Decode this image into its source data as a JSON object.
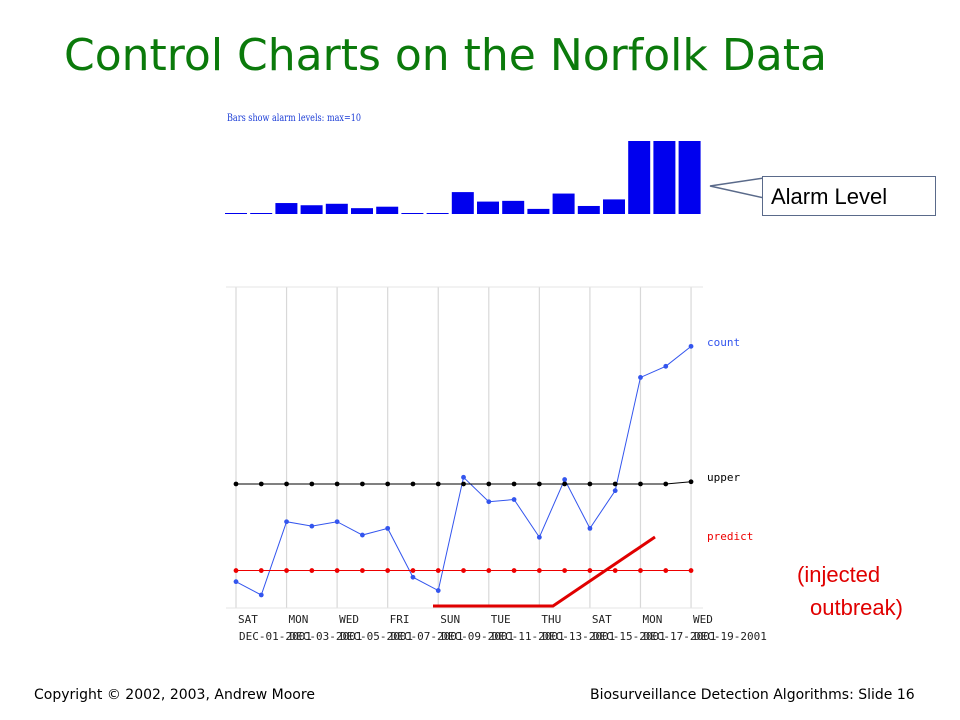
{
  "slide": {
    "title": "Control Charts on the Norfolk Data",
    "callout": "Alarm Level",
    "note_line1": "(injected",
    "note_line2": "outbreak)",
    "footer_left": "Copyright © 2002, 2003, Andrew  Moore",
    "footer_right": "Biosurveillance Detection Algorithms: Slide 16"
  },
  "chart_data": [
    {
      "type": "bar",
      "title": "Bars show alarm levels: max=10",
      "ylim": [
        0,
        10
      ],
      "values": [
        0.1,
        0,
        1.5,
        1.2,
        1.4,
        0.8,
        1.0,
        0.1,
        0,
        3.0,
        1.7,
        1.8,
        0.7,
        2.8,
        1.1,
        2.0,
        10,
        10,
        10
      ],
      "color": "#0000ee"
    },
    {
      "type": "line",
      "x_tick_labels": [
        "SAT",
        "MON",
        "WED",
        "FRI",
        "SUN",
        "TUE",
        "THU",
        "SAT",
        "MON",
        "WED"
      ],
      "date_labels": [
        "DEC-01-2001",
        "DEC-03-2001",
        "DEC-05-2001",
        "DEC-07-2001",
        "DEC-09-2001",
        "DEC-11-2001",
        "DEC-13-2001",
        "DEC-15-2001",
        "DEC-17-2001",
        "DEC-19-2001"
      ],
      "series": [
        {
          "name": "count",
          "color": "#3355ee",
          "values": [
            3.7,
            3.1,
            6.4,
            6.2,
            6.4,
            5.8,
            6.1,
            3.9,
            3.3,
            8.4,
            7.3,
            7.4,
            5.7,
            8.3,
            6.1,
            7.8,
            12.9,
            13.4,
            14.3
          ]
        },
        {
          "name": "upper",
          "color": "#000000",
          "values": [
            8.1,
            8.1,
            8.1,
            8.1,
            8.1,
            8.1,
            8.1,
            8.1,
            8.1,
            8.1,
            8.1,
            8.1,
            8.1,
            8.1,
            8.1,
            8.1,
            8.1,
            8.1,
            8.2
          ]
        },
        {
          "name": "predict",
          "color": "#ee0000",
          "values": [
            4.2,
            4.2,
            4.2,
            4.2,
            4.2,
            4.2,
            4.2,
            4.2,
            4.2,
            4.2,
            4.2,
            4.2,
            4.2,
            4.2,
            4.2,
            4.2,
            4.2,
            4.2,
            4.2
          ]
        }
      ]
    }
  ]
}
